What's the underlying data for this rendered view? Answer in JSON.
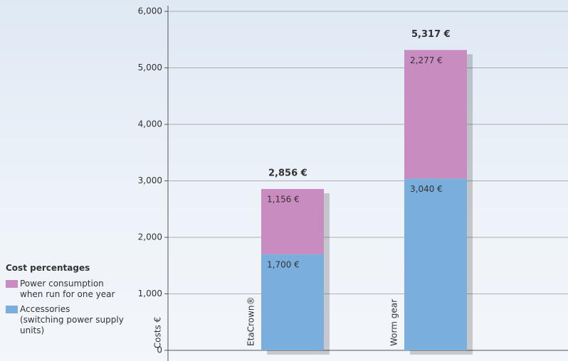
{
  "chart_data": {
    "type": "stacked_bar",
    "legend_title": "Cost percentages",
    "y_label": "Costs €",
    "categories": [
      "EtaCrown®",
      "Worm gear"
    ],
    "series": [
      {
        "name": "Accessories\n(switching power supply\nunits)",
        "color": "#7aaedc",
        "values": [
          1700,
          3040
        ],
        "value_labels": [
          "1,700 €",
          "3,040 €"
        ]
      },
      {
        "name": "Power consumption\nwhen run for one year",
        "color": "#c98cc0",
        "values": [
          1156,
          2277
        ],
        "value_labels": [
          "1,156 €",
          "2,277 €"
        ]
      }
    ],
    "totals": [
      2856,
      5317
    ],
    "total_labels": [
      "2,856 €",
      "5,317 €"
    ],
    "ylim": [
      0,
      6000
    ],
    "yticks": [
      0,
      {
        "value": 1000,
        "label": "1,000"
      },
      {
        "value": 2000,
        "label": "2,000"
      },
      {
        "value": 3000,
        "label": "3,000"
      },
      {
        "value": 4000,
        "label": "4,000"
      },
      {
        "value": 5000,
        "label": "5,000"
      },
      {
        "value": 6000,
        "label": "6,000"
      }
    ],
    "grid": true
  }
}
